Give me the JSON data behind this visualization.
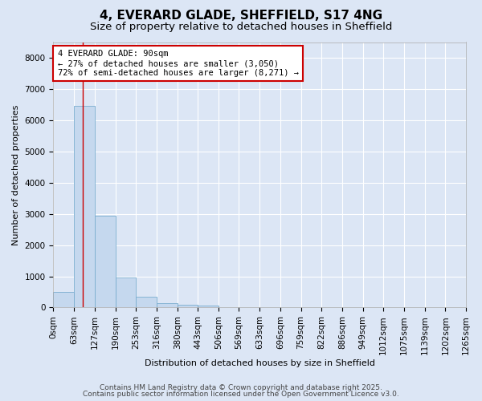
{
  "title1": "4, EVERARD GLADE, SHEFFIELD, S17 4NG",
  "title2": "Size of property relative to detached houses in Sheffield",
  "xlabel": "Distribution of detached houses by size in Sheffield",
  "ylabel": "Number of detached properties",
  "bar_color": "#c5d8ee",
  "bar_edge_color": "#7aadcf",
  "background_color": "#dce6f5",
  "plot_bg_color": "#dce6f5",
  "grid_color": "#ffffff",
  "bin_edges": [
    0,
    63,
    127,
    190,
    253,
    316,
    380,
    443,
    506,
    569,
    633,
    696,
    759,
    822,
    886,
    949,
    1012,
    1075,
    1139,
    1202,
    1265
  ],
  "bar_heights": [
    500,
    6450,
    2950,
    950,
    350,
    150,
    100,
    75,
    10,
    5,
    5,
    3,
    3,
    2,
    2,
    2,
    2,
    1,
    1,
    1
  ],
  "tick_labels": [
    "0sqm",
    "63sqm",
    "127sqm",
    "190sqm",
    "253sqm",
    "316sqm",
    "380sqm",
    "443sqm",
    "506sqm",
    "569sqm",
    "633sqm",
    "696sqm",
    "759sqm",
    "822sqm",
    "886sqm",
    "949sqm",
    "1012sqm",
    "1075sqm",
    "1139sqm",
    "1202sqm",
    "1265sqm"
  ],
  "ylim": [
    0,
    8500
  ],
  "yticks": [
    0,
    1000,
    2000,
    3000,
    4000,
    5000,
    6000,
    7000,
    8000
  ],
  "red_line_x": 90,
  "annotation_line1": "4 EVERARD GLADE: 90sqm",
  "annotation_line2": "← 27% of detached houses are smaller (3,050)",
  "annotation_line3": "72% of semi-detached houses are larger (8,271) →",
  "annotation_box_color": "#cc0000",
  "footer1": "Contains HM Land Registry data © Crown copyright and database right 2025.",
  "footer2": "Contains public sector information licensed under the Open Government Licence v3.0.",
  "title1_fontsize": 11,
  "title2_fontsize": 9.5,
  "axis_label_fontsize": 8,
  "tick_fontsize": 7.5,
  "annotation_fontsize": 7.5,
  "footer_fontsize": 6.5
}
